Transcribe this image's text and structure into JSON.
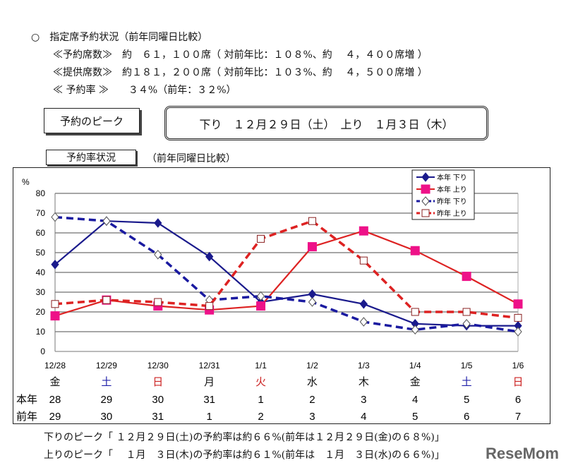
{
  "header": {
    "line1": "○　指定席予約状況（前年同曜日比較）",
    "line2": "≪予約席数≫　約　６１，１００席（ 対前年比：１０８%、約　 ４，４００席増 ）",
    "line3": "≪提供席数≫　約１８１，２００席（ 対前年比：１０３%、約　 ４，５００席増 ）",
    "line4": "≪ 予約率 ≫　　３４%（前年：３２%）"
  },
  "peak_label": "予約のピーク",
  "peak_value": "下り　１２月２９日（土）　上り　１月３日（木）",
  "rate_label": "予約率状況",
  "rate_note": "（前年同曜日比較）",
  "chart_data": {
    "type": "line",
    "ylabel": "%",
    "ylim": [
      0,
      80
    ],
    "yticks": [
      0,
      10,
      20,
      30,
      40,
      50,
      60,
      70,
      80
    ],
    "grid": true,
    "legend_position": "top-right",
    "categories": [
      "12/28",
      "12/29",
      "12/30",
      "12/31",
      "1/1",
      "1/2",
      "1/3",
      "1/4",
      "1/5",
      "1/6"
    ],
    "weekdays": [
      "金",
      "土",
      "日",
      "月",
      "火",
      "水",
      "木",
      "金",
      "土",
      "日"
    ],
    "weekday_colors": [
      "#111",
      "#2222aa",
      "#cc2222",
      "#111",
      "#cc2222",
      "#111",
      "#111",
      "#111",
      "#2222aa",
      "#cc2222"
    ],
    "row_this_year_label": "本年",
    "row_this_year": [
      "28",
      "29",
      "30",
      "31",
      "1",
      "2",
      "3",
      "4",
      "5",
      "6"
    ],
    "row_last_year_label": "前年",
    "row_last_year": [
      "29",
      "30",
      "31",
      "1",
      "2",
      "3",
      "4",
      "5",
      "6",
      "7"
    ],
    "series": [
      {
        "name": "本年 下り",
        "color": "#1a1a8c",
        "dashed": false,
        "marker": "diamond-filled",
        "values": [
          44,
          66,
          65,
          48,
          25,
          29,
          24,
          14,
          13,
          13
        ]
      },
      {
        "name": "本年 上り",
        "color": "#dd2222",
        "marker_color": "#ee1188",
        "dashed": false,
        "marker": "square-filled",
        "values": [
          18,
          26,
          23,
          21,
          23,
          53,
          61,
          51,
          38,
          24
        ]
      },
      {
        "name": "昨年 下り",
        "color": "#1a1aa0",
        "dashed": true,
        "marker": "diamond-open",
        "values": [
          68,
          66,
          49,
          26,
          28,
          25,
          15,
          11,
          14,
          10
        ]
      },
      {
        "name": "昨年 上り",
        "color": "#dd2222",
        "dashed": true,
        "marker": "square-open",
        "values": [
          24,
          26,
          25,
          23,
          57,
          66,
          46,
          20,
          20,
          17
        ]
      }
    ]
  },
  "footer": {
    "line1": "下りのピーク「 １２月２９日(土)の予約率は約６６%(前年は１２月２９日(金)の６８%)」",
    "line2": "上りのピーク「　 １月　３日(木)の予約率は約６１%(前年は　１月　３日(水)の６６%)」"
  },
  "watermark": "ReseMom"
}
